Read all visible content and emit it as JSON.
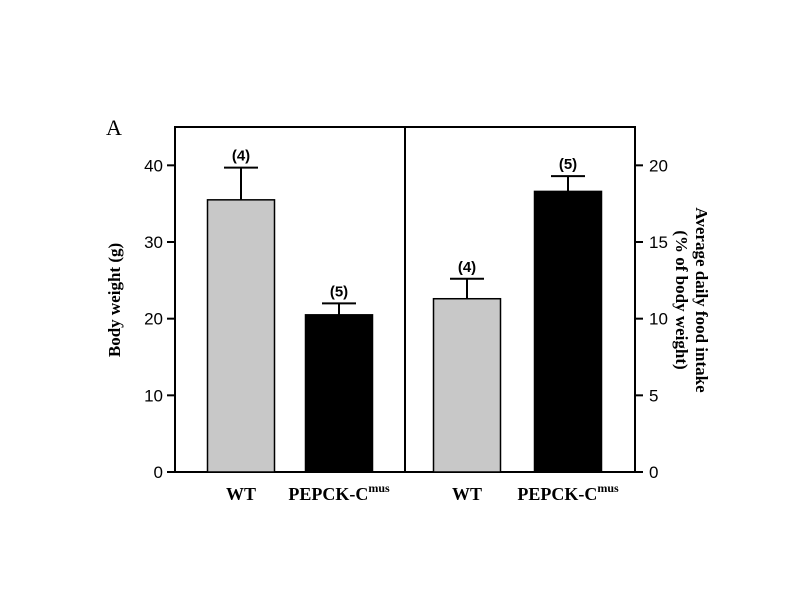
{
  "panel_label": "A",
  "chart_data": [
    {
      "type": "bar",
      "categories": [
        "WT",
        "PEPCK-C"
      ],
      "category_superscripts": [
        "",
        "mus"
      ],
      "values": [
        35.5,
        20.5
      ],
      "errors": [
        4.2,
        1.5
      ],
      "n_labels": [
        "(4)",
        "(5)"
      ],
      "bar_colors": [
        "#c8c8c8",
        "#000000"
      ],
      "ylabel": "Body weight (g)",
      "ylim": [
        0,
        45
      ],
      "yticks": [
        0,
        10,
        20,
        30,
        40
      ],
      "y_axis_side": "left"
    },
    {
      "type": "bar",
      "categories": [
        "WT",
        "PEPCK-C"
      ],
      "category_superscripts": [
        "",
        "mus"
      ],
      "values": [
        11.3,
        18.3
      ],
      "errors": [
        1.3,
        1.0
      ],
      "n_labels": [
        "(4)",
        "(5)"
      ],
      "bar_colors": [
        "#c8c8c8",
        "#000000"
      ],
      "ylabel": [
        "Average daily food intake",
        "(% of body weight)"
      ],
      "ylim": [
        0,
        22.5
      ],
      "yticks": [
        0,
        5,
        10,
        15,
        20
      ],
      "y_axis_side": "right"
    }
  ]
}
